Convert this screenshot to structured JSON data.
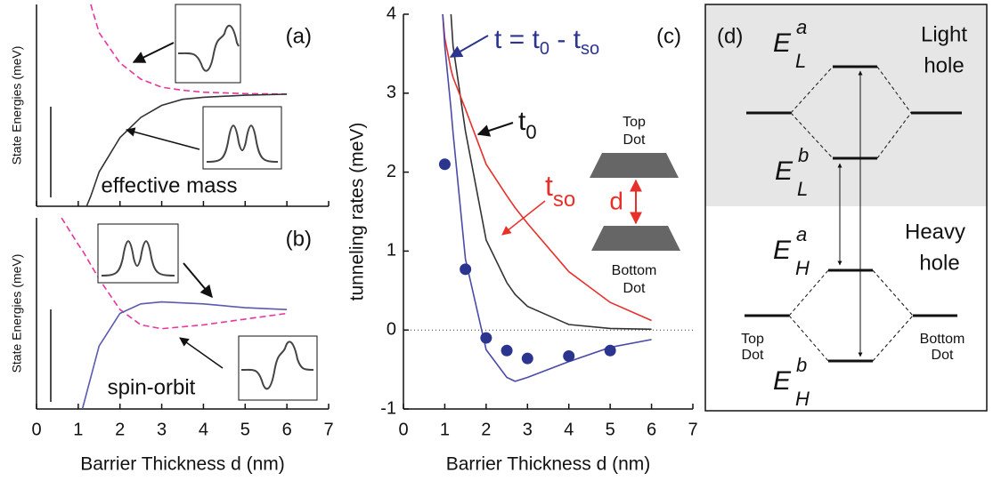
{
  "chart_data": [
    {
      "type": "line",
      "label": "(a)",
      "ylabel": "State Energies (meV)",
      "annotation": "effective mass",
      "xlim": [
        0,
        7
      ],
      "xticks": [
        0,
        1,
        2,
        3,
        4,
        5,
        6,
        7
      ],
      "ylim": [
        0,
        1
      ],
      "x": [
        1.2,
        1.3,
        1.5,
        2,
        2.5,
        3,
        3.5,
        4,
        5,
        6
      ],
      "series": [
        {
          "color": "#e8359e",
          "dashed": true,
          "values": [
            null,
            1.0,
            0.86,
            0.71,
            0.63,
            0.59,
            0.575,
            0.565,
            0.558,
            0.556
          ]
        },
        {
          "color": "#333333",
          "dashed": false,
          "values": [
            0,
            0.05,
            0.17,
            0.34,
            0.44,
            0.5,
            0.53,
            0.54,
            0.55,
            0.555
          ]
        }
      ]
    },
    {
      "type": "line",
      "label": "(b)",
      "ylabel": "State Energies (meV)",
      "annotation": "spin-orbit",
      "xlabel": "Barrier Thickness d (nm)",
      "xlim": [
        0,
        7
      ],
      "xticks": [
        0,
        1,
        2,
        3,
        4,
        5,
        6,
        7
      ],
      "ylim": [
        0,
        1
      ],
      "x": [
        0.6,
        1,
        1.1,
        1.5,
        2,
        2.5,
        3,
        4,
        5,
        6
      ],
      "series": [
        {
          "color": "#e8359e",
          "dashed": true,
          "values": [
            1.0,
            0.86,
            0.83,
            0.68,
            0.52,
            0.44,
            0.42,
            0.44,
            0.47,
            0.5
          ]
        },
        {
          "color": "#5a5ab0",
          "dashed": false,
          "values": [
            null,
            null,
            0,
            0.33,
            0.5,
            0.55,
            0.56,
            0.55,
            0.53,
            0.52
          ]
        }
      ]
    },
    {
      "type": "line",
      "label": "(c)",
      "ylabel": "tunneling rates (meV)",
      "xlabel": "Barrier Thickness d (nm)",
      "xlim": [
        0,
        7
      ],
      "xticks": [
        0,
        1,
        2,
        3,
        4,
        5,
        6,
        7
      ],
      "ylim": [
        -1,
        4
      ],
      "yticks": [
        -1,
        0,
        1,
        2,
        3,
        4
      ],
      "x": [
        0.95,
        1,
        1.15,
        1.2,
        1.5,
        2,
        2.5,
        2.7,
        3,
        4,
        5,
        6
      ],
      "series": [
        {
          "color": "#333333",
          "dashed": false,
          "values": [
            null,
            null,
            4,
            3.6,
            2.52,
            1.14,
            0.6,
            0.45,
            0.3,
            0.07,
            0.02,
            0.01
          ]
        },
        {
          "color": "#e8302a",
          "dashed": false,
          "values": [
            4,
            3.7,
            3.3,
            3.2,
            2.8,
            2.1,
            1.7,
            1.55,
            1.35,
            0.74,
            0.35,
            0.12
          ]
        },
        {
          "color": "#4a4aa8",
          "dashed": false,
          "values": [
            4,
            3.6,
            2.8,
            2.5,
            0.9,
            -0.25,
            -0.6,
            -0.65,
            -0.6,
            -0.4,
            -0.22,
            -0.12
          ]
        },
        {
          "type": "scatter",
          "color": "#2b3590",
          "x": [
            1,
            1.5,
            2,
            2.5,
            3,
            4,
            5
          ],
          "values": [
            2.1,
            0.77,
            -0.1,
            -0.26,
            -0.36,
            -0.33,
            -0.26
          ]
        }
      ],
      "formula": [
        "t = t",
        "0",
        " - t",
        "so"
      ],
      "t0": [
        "t",
        "0"
      ],
      "tso": [
        "t",
        "so"
      ],
      "separation": "d",
      "top_dot": [
        "Top",
        "Dot"
      ],
      "bottom_dot": [
        "Bottom",
        "Dot"
      ]
    }
  ],
  "diagram": {
    "label": "(d)",
    "light_hole": [
      "Light",
      "hole"
    ],
    "heavy_hole": [
      "Heavy",
      "hole"
    ],
    "levels": [
      {
        "E": "E",
        "sup": "a",
        "sub": "L"
      },
      {
        "E": "E",
        "sup": "b",
        "sub": "L"
      },
      {
        "E": "E",
        "sup": "a",
        "sub": "H"
      },
      {
        "E": "E",
        "sup": "b",
        "sub": "H"
      }
    ],
    "left_dot": [
      "Top",
      "Dot"
    ],
    "right_dot": [
      "Bottom",
      "Dot"
    ]
  }
}
